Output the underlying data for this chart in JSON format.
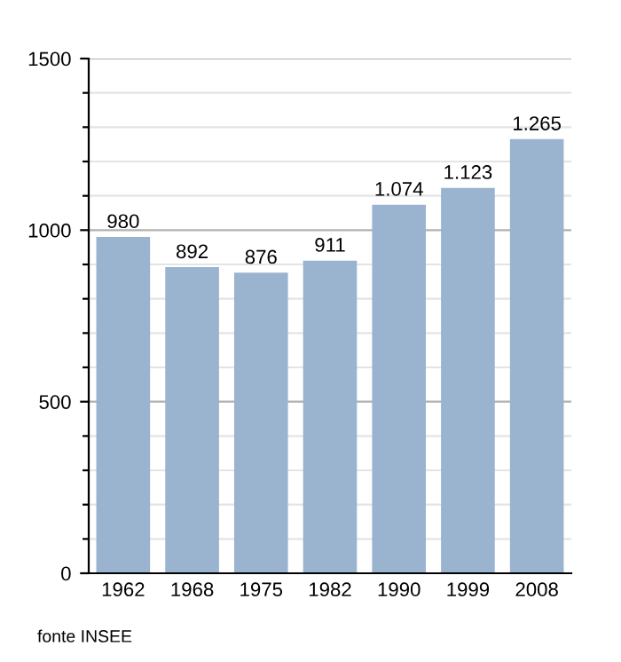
{
  "chart_data": {
    "type": "bar",
    "categories": [
      "1962",
      "1968",
      "1975",
      "1982",
      "1990",
      "1999",
      "2008"
    ],
    "values": [
      980,
      892,
      876,
      911,
      1074,
      1123,
      1265
    ],
    "value_labels": [
      "980",
      "892",
      "876",
      "911",
      "1.074",
      "1.123",
      "1.265"
    ],
    "color": "#9ab3cf",
    "ylim": [
      0,
      1500
    ],
    "yticks": [
      0,
      {
        "value": 100,
        "label": null
      },
      {
        "value": 200,
        "label": null
      },
      {
        "value": 300,
        "label": null
      },
      {
        "value": 400,
        "label": null
      },
      500,
      {
        "value": 600,
        "label": null
      },
      {
        "value": 700,
        "label": null
      },
      {
        "value": 800,
        "label": null
      },
      {
        "value": 900,
        "label": null
      },
      1000,
      {
        "value": 1100,
        "label": null
      },
      {
        "value": 1200,
        "label": null
      },
      {
        "value": 1300,
        "label": null
      },
      {
        "value": 1400,
        "label": null
      },
      1500
    ],
    "grid": "y",
    "annotations": [
      "fonte INSEE"
    ]
  }
}
